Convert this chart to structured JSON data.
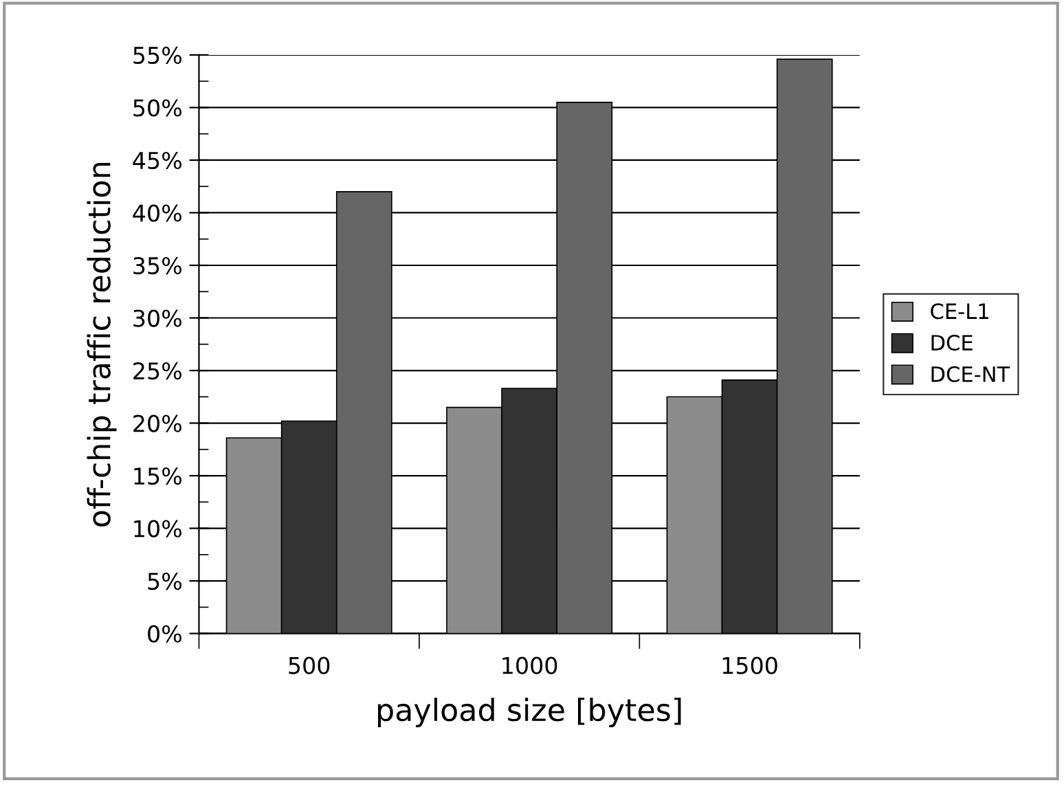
{
  "chart_data": {
    "type": "bar",
    "xlabel": "payload size [bytes]",
    "ylabel": "off-chip traffic reduction",
    "categories": [
      "500",
      "1000",
      "1500"
    ],
    "series": [
      {
        "name": "CE-L1",
        "color": "#8c8c8c",
        "values": [
          18.6,
          21.5,
          22.5
        ]
      },
      {
        "name": "DCE",
        "color": "#333333",
        "values": [
          20.2,
          23.3,
          24.1
        ]
      },
      {
        "name": "DCE-NT",
        "color": "#666666",
        "values": [
          42.0,
          50.5,
          54.6
        ]
      }
    ],
    "ylim": [
      0,
      55
    ],
    "yticks": [
      {
        "value": 0,
        "label": "0%"
      },
      {
        "value": 2.5,
        "label": null
      },
      {
        "value": 5,
        "label": "5%"
      },
      {
        "value": 7.5,
        "label": null
      },
      {
        "value": 10,
        "label": "10%"
      },
      {
        "value": 12.5,
        "label": null
      },
      {
        "value": 15,
        "label": "15%"
      },
      {
        "value": 17.5,
        "label": null
      },
      {
        "value": 20,
        "label": "20%"
      },
      {
        "value": 22.5,
        "label": null
      },
      {
        "value": 25,
        "label": "25%"
      },
      {
        "value": 27.5,
        "label": null
      },
      {
        "value": 30,
        "label": "30%"
      },
      {
        "value": 32.5,
        "label": null
      },
      {
        "value": 35,
        "label": "35%"
      },
      {
        "value": 37.5,
        "label": null
      },
      {
        "value": 40,
        "label": "40%"
      },
      {
        "value": 42.5,
        "label": null
      },
      {
        "value": 45,
        "label": "45%"
      },
      {
        "value": 47.5,
        "label": null
      },
      {
        "value": 50,
        "label": "50%"
      },
      {
        "value": 52.5,
        "label": null
      },
      {
        "value": 55,
        "label": "55%"
      }
    ],
    "grid": "y",
    "legend": "right"
  }
}
